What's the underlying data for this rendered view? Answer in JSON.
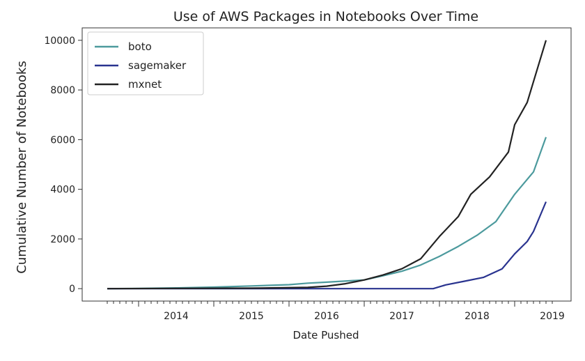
{
  "chart_data": {
    "type": "line",
    "title": "Use of AWS Packages in Notebooks Over Time",
    "xlabel": "Date Pushed",
    "ylabel": "Cumulative Number of Notebooks",
    "x_ticks": [
      "2014",
      "2015",
      "2016",
      "2017",
      "2018",
      "2019"
    ],
    "y_ticks": [
      0,
      2000,
      4000,
      6000,
      8000,
      10000
    ],
    "xlim": [
      "2013-04",
      "2019-10"
    ],
    "ylim": [
      -500,
      10500
    ],
    "legend_position": "top-left",
    "grid": false,
    "series": [
      {
        "name": "boto",
        "color": "#4c9a9d",
        "points": [
          [
            "2013-08",
            0
          ],
          [
            "2014-01",
            10
          ],
          [
            "2014-07",
            30
          ],
          [
            "2015-01",
            60
          ],
          [
            "2015-07",
            110
          ],
          [
            "2016-01",
            160
          ],
          [
            "2016-04",
            220
          ],
          [
            "2016-07",
            260
          ],
          [
            "2017-01",
            350
          ],
          [
            "2017-04",
            520
          ],
          [
            "2017-07",
            700
          ],
          [
            "2017-10",
            950
          ],
          [
            "2018-01",
            1300
          ],
          [
            "2018-04",
            1700
          ],
          [
            "2018-07",
            2150
          ],
          [
            "2018-10",
            2700
          ],
          [
            "2019-01",
            3800
          ],
          [
            "2019-04",
            4700
          ],
          [
            "2019-06",
            6100
          ]
        ]
      },
      {
        "name": "sagemaker",
        "color": "#29338f",
        "points": [
          [
            "2013-08",
            0
          ],
          [
            "2017-12",
            0
          ],
          [
            "2018-02",
            150
          ],
          [
            "2018-05",
            300
          ],
          [
            "2018-08",
            450
          ],
          [
            "2018-11",
            800
          ],
          [
            "2019-01",
            1400
          ],
          [
            "2019-03",
            1900
          ],
          [
            "2019-04",
            2300
          ],
          [
            "2019-06",
            3500
          ]
        ]
      },
      {
        "name": "mxnet",
        "color": "#222222",
        "points": [
          [
            "2013-08",
            0
          ],
          [
            "2014-07",
            10
          ],
          [
            "2015-07",
            20
          ],
          [
            "2016-04",
            50
          ],
          [
            "2016-07",
            100
          ],
          [
            "2016-10",
            200
          ],
          [
            "2017-01",
            350
          ],
          [
            "2017-04",
            550
          ],
          [
            "2017-07",
            800
          ],
          [
            "2017-10",
            1200
          ],
          [
            "2018-01",
            2100
          ],
          [
            "2018-04",
            2900
          ],
          [
            "2018-06",
            3800
          ],
          [
            "2018-09",
            4500
          ],
          [
            "2018-12",
            5500
          ],
          [
            "2019-01",
            6600
          ],
          [
            "2019-03",
            7500
          ],
          [
            "2019-06",
            10000
          ]
        ]
      }
    ]
  }
}
